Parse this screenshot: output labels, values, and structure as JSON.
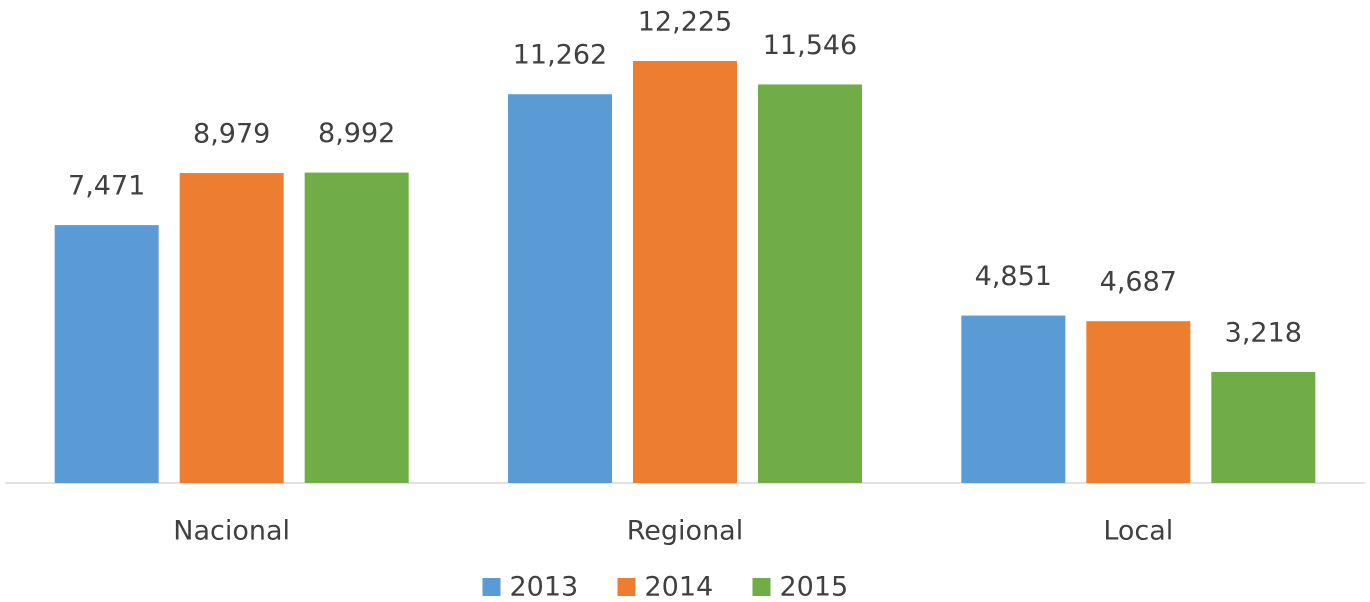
{
  "chart_data": {
    "type": "bar",
    "categories": [
      "Nacional",
      "Regional",
      "Local"
    ],
    "series": [
      {
        "name": "2013",
        "color": "#5b9bd5",
        "values": [
          7471,
          11262,
          4851
        ],
        "value_labels": [
          "7,471",
          "11,262",
          "4,851"
        ]
      },
      {
        "name": "2014",
        "color": "#ed7d31",
        "values": [
          8979,
          12225,
          4687
        ],
        "value_labels": [
          "8,979",
          "12,225",
          "4,687"
        ]
      },
      {
        "name": "2015",
        "color": "#70ad47",
        "values": [
          8992,
          11546,
          3218
        ],
        "value_labels": [
          "8,992",
          "11,546",
          "3,218"
        ]
      }
    ],
    "legend": "bottom"
  }
}
